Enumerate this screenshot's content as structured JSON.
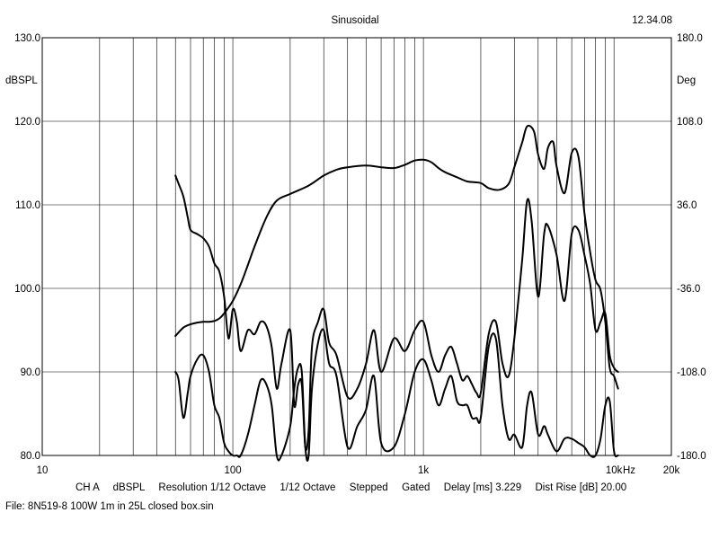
{
  "chart_data": {
    "type": "line",
    "title": "Sinusoidal",
    "time": "12.34.08",
    "xscale": "log",
    "xlim": [
      10,
      20000
    ],
    "xticks": [
      {
        "value": 10,
        "label": "10"
      },
      {
        "value": 100,
        "label": "100"
      },
      {
        "value": 1000,
        "label": "1k"
      },
      {
        "value": 10000,
        "label": "10k"
      },
      {
        "value": 20000,
        "label": "20k"
      }
    ],
    "xunit": "Hz",
    "ylim": [
      80,
      130
    ],
    "ylabel": "dBSPL",
    "yticks": [
      "80.0",
      "90.0",
      "100.0",
      "110.0",
      "120.0",
      "130.0"
    ],
    "y2lim": [
      -180,
      180
    ],
    "y2label": "Deg",
    "y2ticks": [
      "-180.0",
      "-108.0",
      "-36.0",
      "36.0",
      "108.0",
      "180.0"
    ],
    "grid": true,
    "series": [
      {
        "x": [
          50,
          55,
          60,
          65,
          70,
          75,
          80,
          85,
          90,
          100,
          110,
          120,
          130,
          150,
          170,
          200,
          250,
          300,
          350,
          400,
          500,
          600,
          700,
          800,
          900,
          1000,
          1100,
          1200,
          1300,
          1500,
          1700,
          2000,
          2200,
          2500,
          2800,
          3000,
          3300,
          3500,
          3800,
          4000,
          4300,
          4500,
          4800,
          5000,
          5500,
          6000,
          6500,
          7000,
          7500,
          8000,
          8500,
          9000,
          9500,
          10000,
          10500
        ],
        "y": [
          94.3,
          95.3,
          95.7,
          95.9,
          96.0,
          96.0,
          96.1,
          96.4,
          97.0,
          98.5,
          100.5,
          102.8,
          105.0,
          108.5,
          110.5,
          111.3,
          112.3,
          113.5,
          114.2,
          114.5,
          114.7,
          114.5,
          114.4,
          114.8,
          115.3,
          115.4,
          115.1,
          114.4,
          113.9,
          113.3,
          112.8,
          112.6,
          112.0,
          111.8,
          112.5,
          114.5,
          117.5,
          119.4,
          118.8,
          116.0,
          114.3,
          116.8,
          117.5,
          114.6,
          111.4,
          116.2,
          115.8,
          109.0,
          104.3,
          101.0,
          99.8,
          96.0,
          90.5,
          89.5,
          88.0
        ]
      },
      {
        "x": [
          50,
          52,
          55,
          58,
          60,
          65,
          70,
          75,
          80,
          85,
          90,
          95,
          100,
          105,
          110,
          120,
          130,
          140,
          150,
          160,
          170,
          180,
          200,
          210,
          220,
          230,
          240,
          250,
          260,
          280,
          300,
          320,
          350,
          400,
          450,
          500,
          550,
          600,
          700,
          800,
          900,
          1000,
          1100,
          1200,
          1300,
          1400,
          1500,
          1600,
          1700,
          1800,
          1900,
          2000,
          2200,
          2400,
          2600,
          2800,
          3000,
          3300,
          3500,
          3700,
          4000,
          4300,
          4500,
          5000,
          5500,
          6000,
          6500,
          7000,
          7500,
          8000,
          8500,
          9000,
          9500,
          10000,
          10500
        ],
        "y": [
          113.5,
          112.5,
          111.0,
          108.5,
          107.0,
          106.5,
          106.0,
          105.0,
          103.0,
          102.0,
          99.0,
          94.0,
          97.5,
          96.0,
          92.5,
          95.0,
          94.5,
          96.0,
          95.5,
          93.0,
          88.0,
          91.0,
          95.0,
          86.0,
          88.5,
          88.5,
          81.0,
          83.0,
          93.0,
          96.0,
          97.5,
          93.5,
          92.0,
          87.0,
          88.0,
          91.0,
          95.0,
          90.0,
          94.0,
          92.5,
          95.0,
          96.0,
          92.0,
          90.0,
          92.0,
          93.0,
          91.0,
          89.0,
          89.5,
          88.5,
          87.5,
          87.5,
          94.5,
          96.0,
          91.0,
          89.5,
          94.0,
          103.5,
          110.5,
          108.0,
          99.0,
          106.5,
          107.5,
          104.0,
          98.5,
          106.5,
          107.0,
          104.0,
          100.5,
          95.0,
          96.0,
          97.0,
          92.0,
          90.5,
          90.0
        ]
      },
      {
        "x": [
          50,
          52,
          55,
          58,
          60,
          65,
          70,
          75,
          80,
          85,
          90,
          95,
          100,
          105,
          110,
          120,
          130,
          140,
          150,
          160,
          170,
          180,
          200,
          210,
          220,
          230,
          240,
          250,
          260,
          280,
          300,
          320,
          350,
          400,
          450,
          500,
          550,
          600,
          700,
          800,
          900,
          1000,
          1100,
          1200,
          1300,
          1400,
          1500,
          1600,
          1700,
          1800,
          1900,
          2000,
          2200,
          2400,
          2600,
          2800,
          3000,
          3300,
          3500,
          3700,
          4000,
          4300,
          4500,
          5000,
          5500,
          6000,
          6500,
          7000,
          7500,
          8000,
          8500,
          9000,
          9500,
          10000,
          10500
        ],
        "y": [
          90.0,
          89.0,
          84.5,
          87.5,
          89.5,
          91.5,
          92.0,
          90.0,
          86.0,
          84.5,
          81.5,
          80.5,
          80.0,
          80.0,
          80.0,
          82.5,
          86.0,
          89.0,
          88.5,
          86.0,
          80.0,
          80.0,
          83.5,
          88.0,
          90.5,
          90.0,
          81.0,
          80.0,
          88.0,
          93.5,
          95.0,
          91.0,
          89.5,
          81.0,
          83.5,
          85.5,
          89.5,
          81.5,
          81.0,
          85.0,
          90.0,
          91.5,
          89.0,
          86.0,
          88.0,
          89.5,
          86.5,
          86.0,
          86.0,
          84.5,
          84.5,
          84.5,
          93.0,
          94.0,
          86.0,
          82.0,
          82.5,
          81.0,
          86.0,
          87.5,
          82.5,
          83.5,
          82.5,
          80.5,
          82.0,
          82.0,
          81.5,
          81.0,
          80.0,
          80.0,
          82.0,
          86.0,
          86.5,
          80.5,
          80.0
        ]
      }
    ]
  },
  "footer": {
    "line1": [
      "CH A",
      "dBSPL",
      "Resolution 1/12 Octave",
      "1/12 Octave",
      "Stepped",
      "Gated",
      "Delay [ms] 3.229",
      "Dist Rise [dB] 20.00"
    ],
    "file": "File: 8N519-8 100W 1m in 25L closed box.sin"
  }
}
